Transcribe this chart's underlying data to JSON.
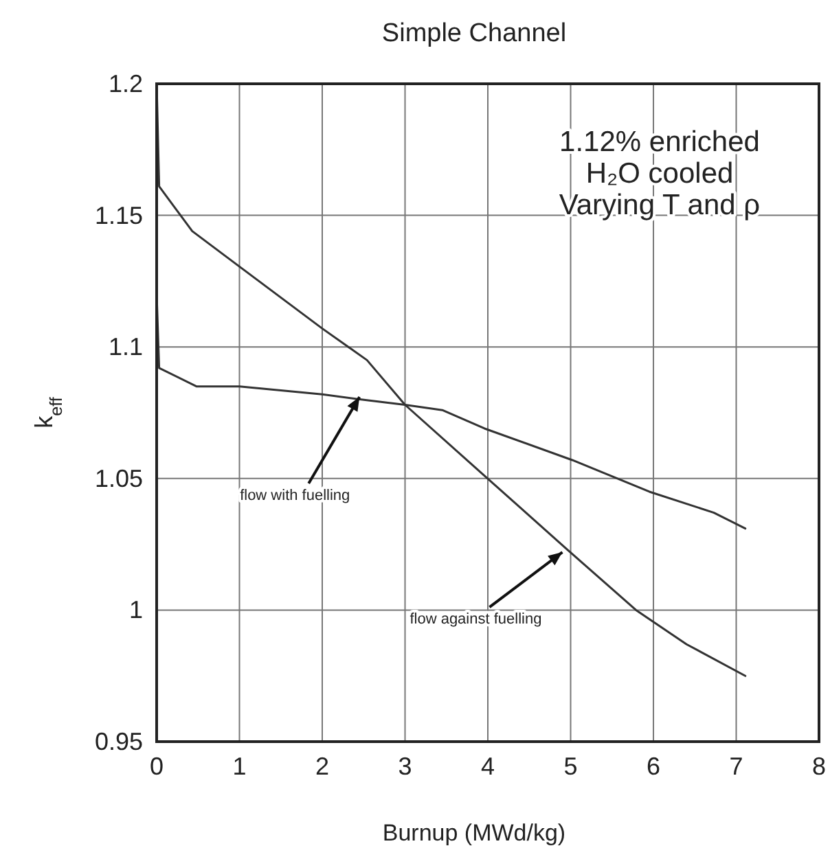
{
  "chart_data": {
    "type": "line",
    "title": "Simple Channel",
    "xlabel": "Burnup  (MWd/kg)",
    "ylabel": "k$_{eff}$",
    "xlim": [
      0,
      8
    ],
    "xticks": [
      0,
      1,
      2,
      3,
      4,
      5,
      6,
      7,
      8
    ],
    "ylim": [
      0.95,
      1.2
    ],
    "yticks": [
      0.95,
      1,
      1.05,
      1.1,
      1.15,
      1.2
    ],
    "grid": true,
    "marker": "none",
    "line_style": "solid",
    "series": [
      {
        "color": "#333333",
        "x": [
          0,
          0.03,
          0.43,
          0.98,
          2.0,
          2.54,
          3.0,
          3.96,
          4.96,
          5.79,
          6.4,
          7.11
        ],
        "values": [
          1.2,
          1.161,
          1.144,
          1.131,
          1.107,
          1.095,
          1.078,
          1.051,
          1.023,
          1.0,
          0.987,
          0.975
        ]
      },
      {
        "color": "#333333",
        "x": [
          0,
          0.03,
          0.48,
          1.0,
          2.0,
          2.47,
          3.0,
          3.45,
          3.96,
          5.02,
          5.95,
          6.73,
          7.11
        ],
        "values": [
          1.12,
          1.092,
          1.085,
          1.085,
          1.082,
          1.08,
          1.078,
          1.076,
          1.069,
          1.057,
          1.045,
          1.037,
          1.031
        ]
      }
    ],
    "annotations": [
      "1.12% enriched",
      "H₂O cooled",
      "Varying T and ρ",
      {
        "text": "flow with fuelling",
        "x": 2.45,
        "y": 1.081
      },
      {
        "text": "flow against fuelling",
        "x": 4.9,
        "y": 1.022
      }
    ]
  }
}
